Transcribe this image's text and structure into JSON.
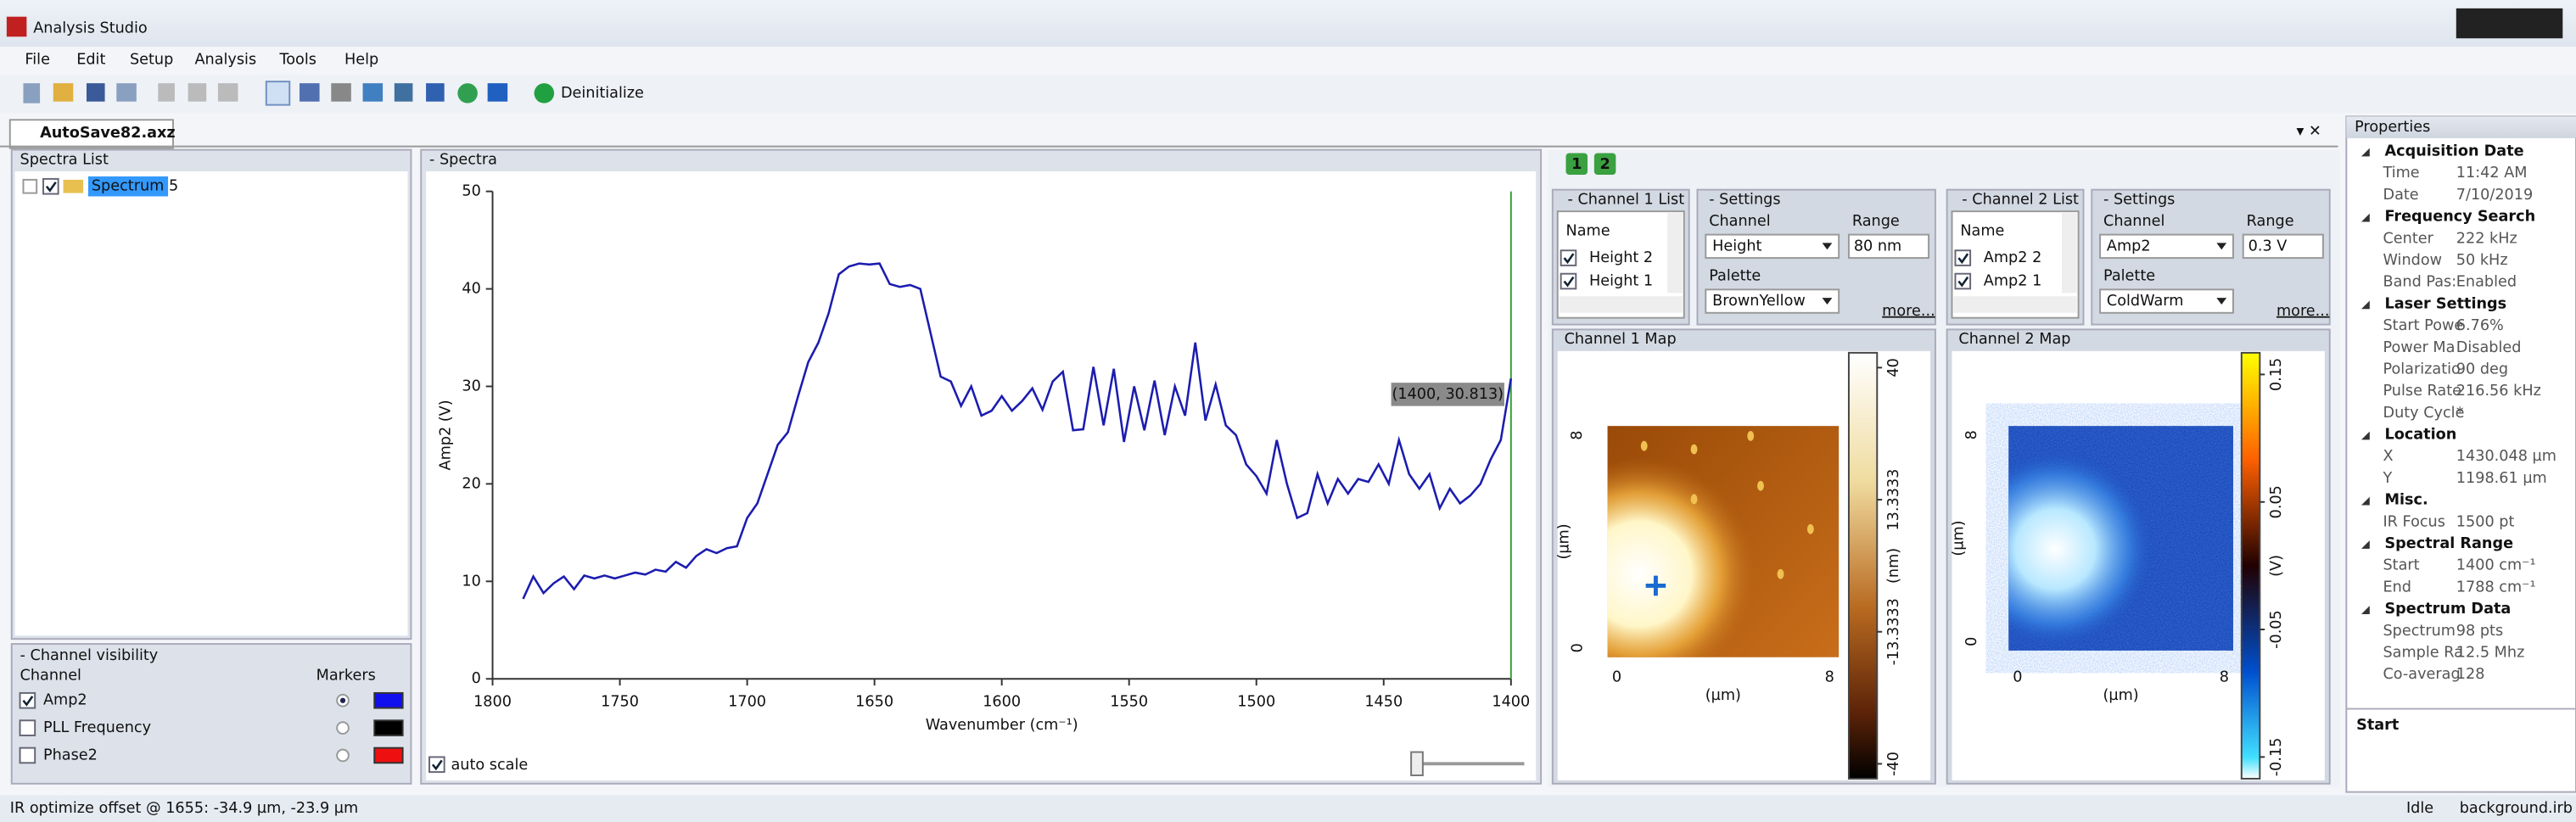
{
  "window": {
    "title": "Analysis Studio"
  },
  "menu": [
    "File",
    "Edit",
    "Setup",
    "Analysis",
    "Tools",
    "Help"
  ],
  "toolbar": {
    "deinitialize": "Deinitialize"
  },
  "tab": "AutoSave82.axz",
  "spectra_list": {
    "title": "Spectra List",
    "items": [
      "Spectrum 5"
    ]
  },
  "channel_visibility": {
    "title": "- Channel visibility",
    "channel_header": "Channel",
    "markers_header": "Markers",
    "channels": [
      {
        "name": "Amp2",
        "color": "#1010ee",
        "checked": true
      },
      {
        "name": "PLL Frequency",
        "color": "#000000",
        "checked": false
      },
      {
        "name": "Phase2",
        "color": "#ee1010",
        "checked": false
      }
    ]
  },
  "spectra": {
    "title": "- Spectra",
    "auto_scale": "auto scale",
    "tooltip": "(1400, 30.813)",
    "chart": {
      "type": "line",
      "xlabel": "Wavenumber (cm⁻¹)",
      "ylabel": "Amp2 (V)",
      "color": "#1c1cb0",
      "x": [
        1788,
        1784,
        1780,
        1776,
        1772,
        1768,
        1764,
        1760,
        1756,
        1752,
        1748,
        1744,
        1740,
        1736,
        1732,
        1728,
        1724,
        1720,
        1716,
        1712,
        1708,
        1704,
        1700,
        1696,
        1692,
        1688,
        1684,
        1680,
        1676,
        1672,
        1668,
        1664,
        1660,
        1656,
        1652,
        1648,
        1644,
        1640,
        1636,
        1632,
        1628,
        1624,
        1620,
        1616,
        1612,
        1608,
        1604,
        1600,
        1596,
        1592,
        1588,
        1584,
        1580,
        1576,
        1572,
        1568,
        1564,
        1560,
        1556,
        1552,
        1548,
        1544,
        1540,
        1536,
        1532,
        1528,
        1524,
        1520,
        1516,
        1512,
        1508,
        1504,
        1500,
        1496,
        1492,
        1488,
        1484,
        1480,
        1476,
        1472,
        1468,
        1464,
        1460,
        1456,
        1452,
        1448,
        1444,
        1440,
        1436,
        1432,
        1428,
        1424,
        1420,
        1416,
        1412,
        1408,
        1404,
        1400
      ],
      "values": [
        8.2,
        10.5,
        8.8,
        9.8,
        10.5,
        9.2,
        10.6,
        10.3,
        10.6,
        10.3,
        10.6,
        10.9,
        10.7,
        11.2,
        11.0,
        12.0,
        11.4,
        12.6,
        13.3,
        12.9,
        13.4,
        13.6,
        16.5,
        18.0,
        21.0,
        24.0,
        25.3,
        29.0,
        32.5,
        34.5,
        37.5,
        41.5,
        42.3,
        42.6,
        42.5,
        42.6,
        40.5,
        40.2,
        40.4,
        40.0,
        35.5,
        31.0,
        30.5,
        28.0,
        30.0,
        27.0,
        27.5,
        29.0,
        27.5,
        28.5,
        29.8,
        27.6,
        30.5,
        31.5,
        25.5,
        25.6,
        32.0,
        26.0,
        31.8,
        24.3,
        30.0,
        25.5,
        30.6,
        25.0,
        30.0,
        27.0,
        34.5,
        26.5,
        30.2,
        26.0,
        25.0,
        22.0,
        20.8,
        19.0,
        24.5,
        20.0,
        16.5,
        17.0,
        21.0,
        18.0,
        20.5,
        19.0,
        20.5,
        20.2,
        22.0,
        20.0,
        24.5,
        21.0,
        19.5,
        21.0,
        17.5,
        19.5,
        18.0,
        18.8,
        20.0,
        22.5,
        24.5,
        30.813
      ],
      "xlim": [
        1800,
        1400
      ],
      "ylim": [
        0,
        50
      ],
      "xticks": [
        1800,
        1750,
        1700,
        1650,
        1600,
        1550,
        1500,
        1450,
        1400
      ],
      "yticks": [
        0,
        10,
        20,
        30,
        40,
        50
      ]
    }
  },
  "map_tabs": [
    "1",
    "2"
  ],
  "channels": [
    {
      "list_title": "- Channel 1 List",
      "name_header": "Name",
      "items": [
        "Height 2",
        "Height 1"
      ],
      "settings_title": "- Settings",
      "channel_label": "Channel",
      "channel": "Height",
      "range_label": "Range",
      "range": "80 nm",
      "palette_label": "Palette",
      "palette": "BrownYellow",
      "more": "more...",
      "map_title": "Channel 1 Map",
      "map_lim": [
        -0.35,
        8.35
      ],
      "map_ticks": [
        0,
        8
      ],
      "axis_label": "(µm)",
      "clim": [
        -43,
        43
      ],
      "colorbar_ticks": [
        40,
        13.3333,
        -13.3333,
        -40
      ],
      "colorbar_label": "(nm)"
    },
    {
      "list_title": "- Channel 2 List",
      "name_header": "Name",
      "items": [
        "Amp2 2",
        "Amp2 1"
      ],
      "settings_title": "- Settings",
      "channel_label": "Channel",
      "channel": "Amp2",
      "range_label": "Range",
      "range": "0.3 V",
      "palette_label": "Palette",
      "palette": "ColdWarm",
      "more": "more...",
      "map_title": "Channel 2 Map",
      "map_lim": [
        -0.35,
        8.35
      ],
      "map_ticks": [
        0,
        8
      ],
      "axis_label": "(µm)",
      "clim": [
        -0.167,
        0.167
      ],
      "colorbar_ticks": [
        0.15,
        0.05,
        -0.05,
        -0.15
      ],
      "colorbar_label": "(V)"
    }
  ],
  "properties": {
    "title": "Properties",
    "footer": "Start",
    "sections": [
      {
        "name": "Acquisition Date",
        "rows": [
          [
            "Time",
            "11:42 AM"
          ],
          [
            "Date",
            "7/10/2019"
          ]
        ]
      },
      {
        "name": "Frequency Search",
        "rows": [
          [
            "Center",
            "222 kHz"
          ],
          [
            "Window",
            "50 kHz"
          ],
          [
            "Band Pas:",
            "Enabled"
          ]
        ]
      },
      {
        "name": "Laser Settings",
        "rows": [
          [
            "Start Powe",
            "6.76%"
          ],
          [
            "Power Ma",
            "Disabled"
          ],
          [
            "Polarizatio",
            "90 deg"
          ],
          [
            "Pulse Rate",
            "216.56 kHz"
          ],
          [
            "Duty Cycle",
            "*"
          ]
        ]
      },
      {
        "name": "Location",
        "rows": [
          [
            "X",
            "1430.048 µm"
          ],
          [
            "Y",
            "1198.61 µm"
          ]
        ]
      },
      {
        "name": "Misc.",
        "rows": [
          [
            "IR Focus",
            "1500 pt"
          ]
        ]
      },
      {
        "name": "Spectral Range",
        "rows": [
          [
            "Start",
            "1400 cm⁻¹"
          ],
          [
            "End",
            "1788 cm⁻¹"
          ]
        ]
      },
      {
        "name": "Spectrum Data",
        "rows": [
          [
            "Spectrum",
            "98 pts"
          ],
          [
            "Sample Ra",
            "12.5 Mhz"
          ],
          [
            "Co-averag",
            "128"
          ]
        ]
      }
    ]
  },
  "status": {
    "message": "IR optimize offset @ 1655: -34.9 µm, -23.9 µm",
    "state": "Idle",
    "file": "background.irb"
  }
}
